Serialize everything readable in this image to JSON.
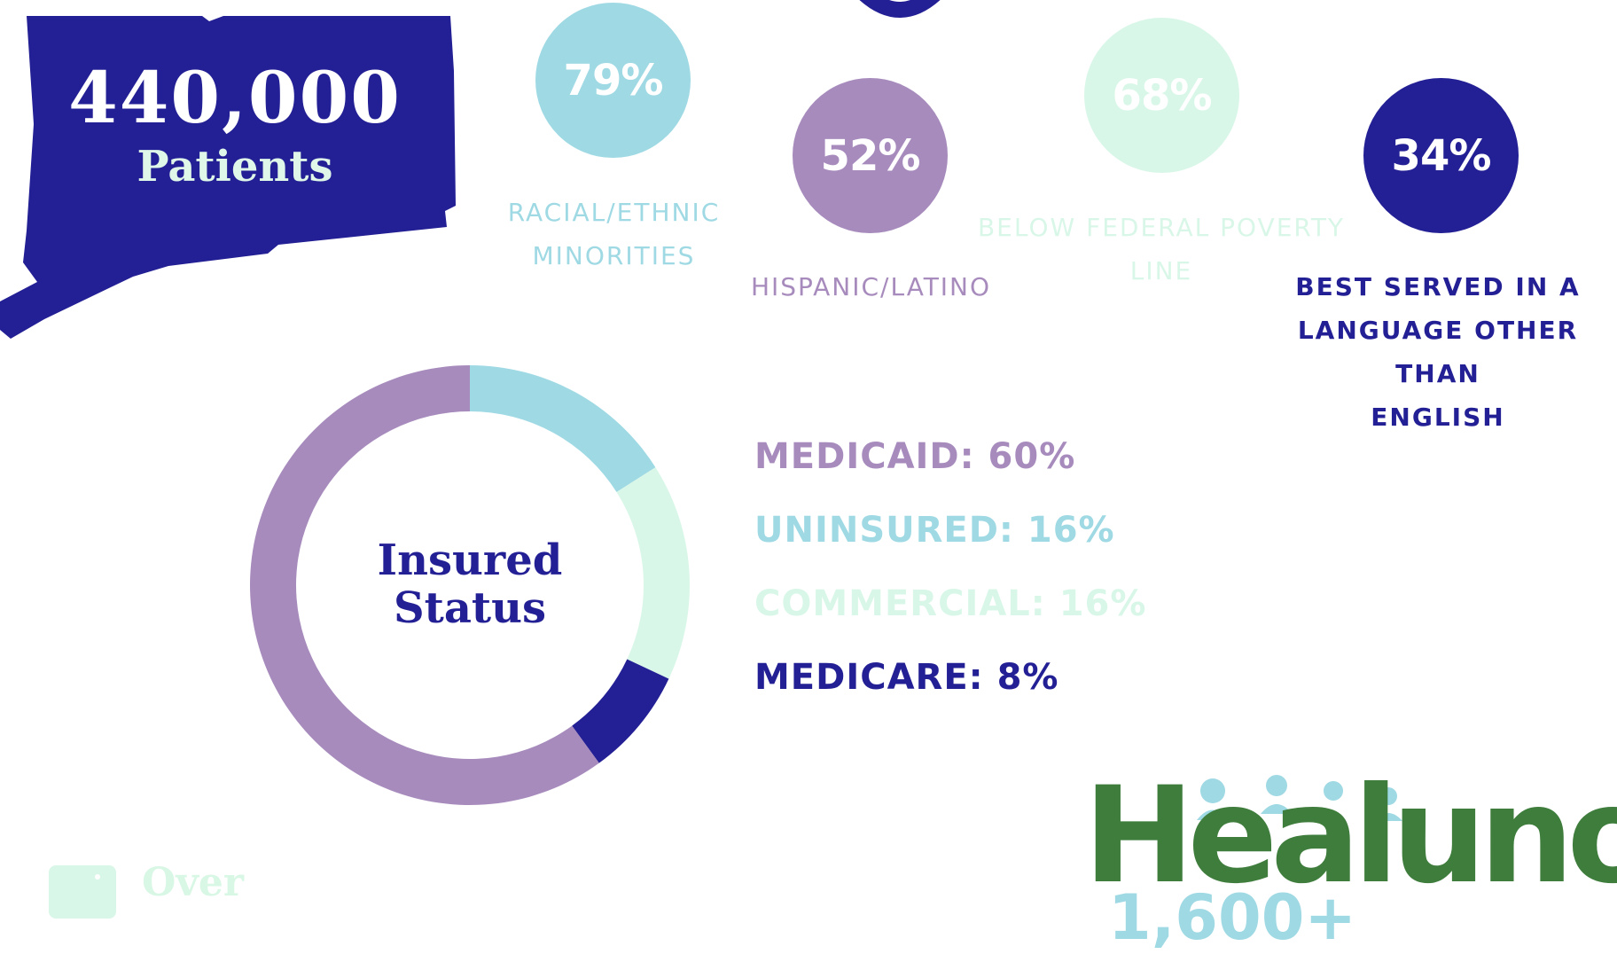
{
  "header": {
    "patients_count": "440,000",
    "patients_label": "Patients"
  },
  "stats": [
    {
      "value": "79%",
      "label_lines": [
        "RACIAL/ETHNIC",
        "MINORITIES"
      ],
      "color": "#9ed9e4",
      "text_color": "#9ed9e4"
    },
    {
      "value": "52%",
      "label_lines": [
        "HISPANIC/LATINO"
      ],
      "color": "#a78bbd",
      "text_color": "#a78bbd"
    },
    {
      "value": "68%",
      "label_lines": [
        "BELOW FEDERAL POVERTY",
        "LINE"
      ],
      "color": "#d9f7e8",
      "text_color": "#d9f7e8"
    },
    {
      "value": "34%",
      "label_lines": [
        "BEST SERVED IN A",
        "LANGUAGE OTHER THAN",
        "ENGLISH"
      ],
      "color": "#231f94",
      "text_color": "#231f94"
    }
  ],
  "chart_data": {
    "type": "pie",
    "title": "Insured Status",
    "donut": true,
    "categories": [
      "MEDICAID",
      "UNINSURED",
      "COMMERCIAL",
      "MEDICARE"
    ],
    "values": [
      60,
      16,
      16,
      8
    ],
    "legend_entries": [
      "MEDICAID: 60%",
      "UNINSURED: 16%",
      "COMMERCIAL: 16%",
      "MEDICARE: 8%"
    ],
    "colors": [
      "#a78bbd",
      "#9ed9e4",
      "#d9f7e8",
      "#231f94"
    ],
    "legend_placement": "right"
  },
  "footer": {
    "over_text": "Over",
    "logo_text": "Healuno",
    "partial_text": "1,600+"
  },
  "colors": {
    "navy": "#231f94",
    "purple": "#a78bbd",
    "teal": "#9ed9e4",
    "mint": "#d9f7e8",
    "green": "#3f7d3d"
  }
}
